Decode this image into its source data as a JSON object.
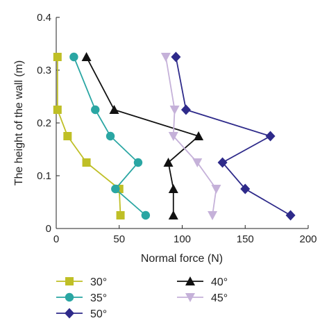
{
  "chart_data": {
    "type": "line",
    "title": "",
    "xlabel": "Normal force (N)",
    "ylabel": "The height of the wall (m)",
    "xlim": [
      0,
      200
    ],
    "ylim": [
      0,
      0.4
    ],
    "x_ticks": [
      "0",
      "50",
      "100",
      "150",
      "200"
    ],
    "y_ticks": [
      "0",
      "0.1",
      "0.2",
      "0.3",
      "0.4"
    ],
    "grid": false,
    "legend_position": "bottom",
    "series": [
      {
        "name": "30°",
        "color": "#bfbf26",
        "marker": "square",
        "points": [
          [
            51,
            0.025
          ],
          [
            50,
            0.075
          ],
          [
            24,
            0.125
          ],
          [
            9,
            0.175
          ],
          [
            1,
            0.225
          ],
          [
            1,
            0.325
          ]
        ]
      },
      {
        "name": "35°",
        "color": "#2aa6a3",
        "marker": "circle",
        "points": [
          [
            71,
            0.025
          ],
          [
            47,
            0.075
          ],
          [
            65,
            0.125
          ],
          [
            43,
            0.175
          ],
          [
            31,
            0.225
          ],
          [
            14,
            0.325
          ]
        ]
      },
      {
        "name": "50°",
        "color": "#2e2a8a",
        "marker": "diamond",
        "points": [
          [
            186,
            0.025
          ],
          [
            150,
            0.075
          ],
          [
            132,
            0.125
          ],
          [
            170,
            0.175
          ],
          [
            103,
            0.225
          ],
          [
            95,
            0.325
          ]
        ]
      },
      {
        "name": "40°",
        "color": "#111111",
        "marker": "triangle-up",
        "points": [
          [
            93,
            0.025
          ],
          [
            93,
            0.075
          ],
          [
            89,
            0.125
          ],
          [
            113,
            0.175
          ],
          [
            46,
            0.225
          ],
          [
            24,
            0.325
          ]
        ]
      },
      {
        "name": "45°",
        "color": "#c5b1d9",
        "marker": "triangle-down",
        "points": [
          [
            124,
            0.025
          ],
          [
            127,
            0.075
          ],
          [
            112,
            0.125
          ],
          [
            93,
            0.175
          ],
          [
            94,
            0.225
          ],
          [
            87,
            0.325
          ]
        ]
      }
    ]
  }
}
